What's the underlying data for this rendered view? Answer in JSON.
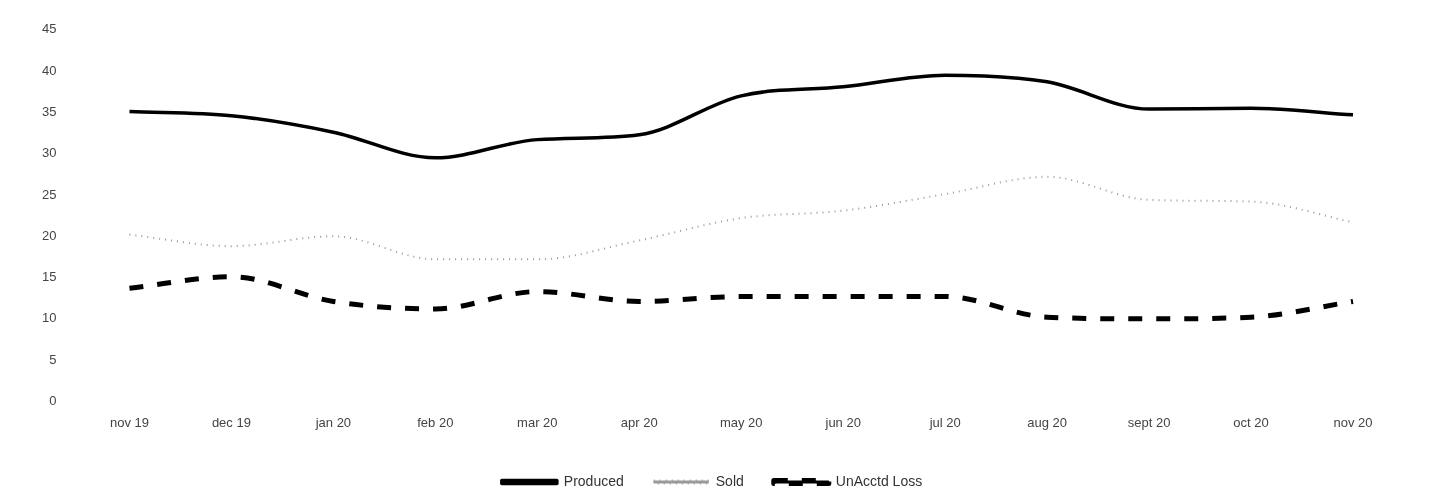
{
  "chart_data": {
    "type": "line",
    "categories": [
      "nov 19",
      "dec 19",
      "jan 20",
      "feb 20",
      "mar 20",
      "apr 20",
      "may 20",
      "jun 20",
      "jul 20",
      "aug 20",
      "sept 20",
      "oct 20",
      "nov 20"
    ],
    "series": [
      {
        "name": "Produced",
        "color": "#000000",
        "line_style": "solid",
        "values": [
          35.1,
          34.6,
          32.6,
          29.5,
          31.7,
          32.3,
          37,
          38.1,
          39.5,
          38.7,
          35.4,
          35.5,
          34.7
        ]
      },
      {
        "name": "Sold",
        "color": "#9a9a9a",
        "line_style": "dotted",
        "values": [
          20.2,
          18.8,
          20,
          17.2,
          17.2,
          19.5,
          22.2,
          23.1,
          25.1,
          27.2,
          24.4,
          24.2,
          21.7
        ]
      },
      {
        "name": "UnAcctd Loss",
        "color": "#000000",
        "line_style": "dashed",
        "values": [
          13.7,
          15.1,
          12.1,
          11.2,
          13.3,
          12.1,
          12.7,
          12.7,
          12.7,
          10.2,
          10,
          10.2,
          12.1
        ]
      }
    ],
    "ylim": [
      0,
      45
    ],
    "yticks": [
      0,
      5,
      10,
      15,
      20,
      25,
      30,
      35,
      40,
      45
    ],
    "grid": false,
    "legend": "bottom",
    "marker": "none"
  }
}
